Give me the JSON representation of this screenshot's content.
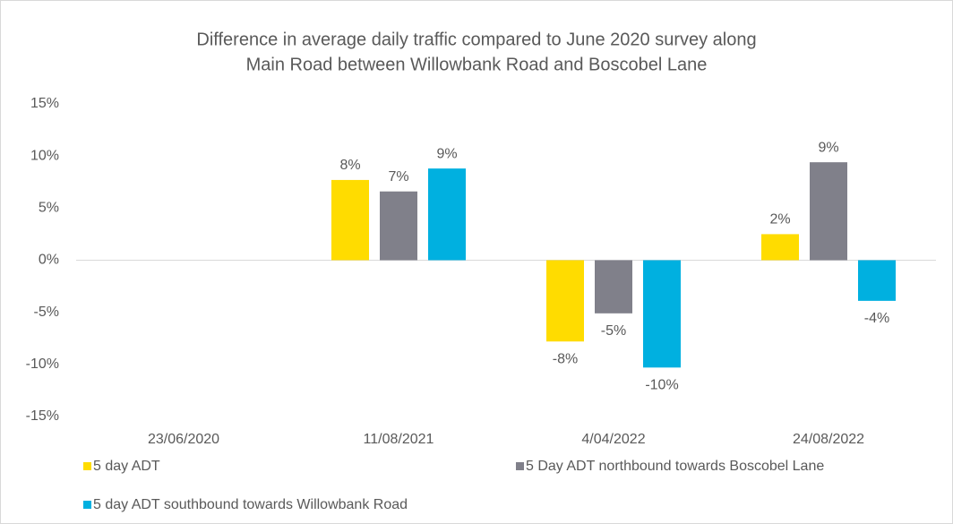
{
  "chart_data": {
    "type": "bar",
    "title": [
      "Difference in average daily traffic compared to June 2020 survey along",
      "Main Road between Willowbank Road and Boscobel Lane"
    ],
    "categories": [
      "23/06/2020",
      "11/08/2021",
      "4/04/2022",
      "24/08/2022"
    ],
    "series": [
      {
        "name": "5 day ADT",
        "color": "#ffdc00",
        "values": [
          null,
          7.7,
          -7.8,
          2.5
        ],
        "value_labels": [
          null,
          "8%",
          "-8%",
          "2%"
        ]
      },
      {
        "name": "5 Day ADT northbound towards Boscobel Lane",
        "color": "#80808a",
        "values": [
          null,
          6.6,
          -5.1,
          9.4
        ],
        "value_labels": [
          null,
          "7%",
          "-5%",
          "9%"
        ]
      },
      {
        "name": "5 day ADT southbound towards Willowbank Road",
        "color": "#00b0e0",
        "values": [
          null,
          8.8,
          -10.3,
          -3.9
        ],
        "value_labels": [
          null,
          "9%",
          "-10%",
          "-4%"
        ]
      }
    ],
    "ylim": [
      -15,
      15
    ],
    "yticks": [
      {
        "value": -15,
        "label": "-15%"
      },
      {
        "value": -10,
        "label": "-10%"
      },
      {
        "value": -5,
        "label": "-5%"
      },
      {
        "value": 0,
        "label": "0%"
      },
      {
        "value": 5,
        "label": "5%"
      },
      {
        "value": 10,
        "label": "10%"
      },
      {
        "value": 15,
        "label": "15%"
      }
    ],
    "grid": false,
    "legend": "bottom"
  }
}
